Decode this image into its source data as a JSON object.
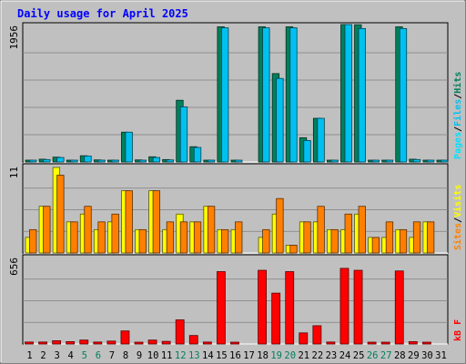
{
  "chart_data": {
    "type": "bar",
    "title": "Daily usage for April 2025",
    "colors": {
      "background": "#c0c0c0",
      "title": "#0000ff",
      "hits": "#00805c",
      "files": "#00c0f0",
      "pages": "#00e0ff",
      "visits": "#ffff00",
      "sites": "#ff8000",
      "kbytes": "#ff0000",
      "weekend_label": "#00805c",
      "weekday_label": "#000000"
    },
    "x": [
      "1",
      "2",
      "3",
      "4",
      "5",
      "6",
      "7",
      "8",
      "9",
      "10",
      "11",
      "12",
      "13",
      "14",
      "15",
      "16",
      "17",
      "18",
      "19",
      "20",
      "21",
      "22",
      "23",
      "24",
      "25",
      "26",
      "27",
      "28",
      "29",
      "30",
      "31"
    ],
    "weekend_days": [
      "5",
      "6",
      "12",
      "13",
      "19",
      "20",
      "26",
      "27"
    ],
    "panels": [
      {
        "id": "hits-files",
        "ymax": 1956,
        "ymax_label": "1956",
        "legend": [
          "Pages",
          "/",
          "Files",
          "/",
          "Hits"
        ],
        "series": [
          {
            "name": "Hits",
            "values": [
              15,
              40,
              70,
              18,
              90,
              30,
              20,
              430,
              30,
              75,
              35,
              890,
              220,
              20,
              1950,
              15,
              0,
              1950,
              1275,
              1950,
              350,
              630,
              20,
              2040,
              1980,
              15,
              15,
              1950,
              40,
              15,
              10
            ]
          },
          {
            "name": "Files",
            "values": [
              12,
              35,
              65,
              15,
              85,
              25,
              18,
              430,
              25,
              65,
              30,
              795,
              210,
              15,
              1935,
              12,
              0,
              1935,
              1205,
              1935,
              310,
              630,
              15,
              2000,
              1925,
              12,
              12,
              1925,
              35,
              12,
              8
            ]
          }
        ]
      },
      {
        "id": "visits-sites",
        "ymax": 11,
        "ymax_label": "11",
        "legend": [
          "Sites",
          "/",
          "Visits"
        ],
        "series": [
          {
            "name": "Visits",
            "values": [
              2,
              6,
              11,
              4,
              5,
              3,
              4,
              8,
              3,
              8,
              3,
              5,
              4,
              6,
              3,
              3,
              0,
              2,
              5,
              1,
              4,
              4,
              3,
              3,
              5,
              2,
              2,
              3,
              2,
              4,
              0
            ]
          },
          {
            "name": "Sites",
            "values": [
              3,
              6,
              10,
              4,
              6,
              4,
              5,
              8,
              3,
              8,
              4,
              4,
              4,
              6,
              3,
              4,
              0,
              3,
              7,
              1,
              4,
              6,
              3,
              5,
              6,
              2,
              4,
              3,
              4,
              4,
              0
            ]
          }
        ]
      },
      {
        "id": "kbytes",
        "ymax": 656,
        "ymax_label": "656",
        "legend": [
          "kB",
          "F"
        ],
        "series": [
          {
            "name": "kB F",
            "values": [
              15,
              15,
              25,
              18,
              30,
              15,
              22,
              100,
              12,
              30,
              20,
              185,
              65,
              15,
              555,
              12,
              0,
              565,
              390,
              555,
              85,
              140,
              15,
              580,
              565,
              12,
              12,
              560,
              18,
              12,
              0
            ]
          }
        ]
      }
    ]
  }
}
